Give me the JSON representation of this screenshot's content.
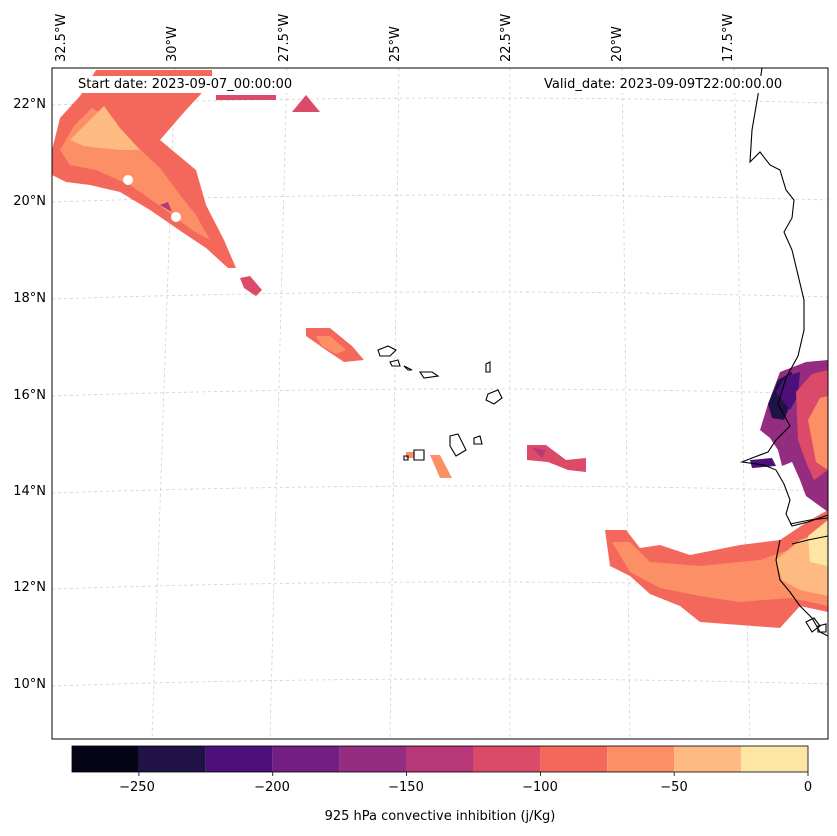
{
  "map": {
    "start_date": "Start date: 2023-09-07_00:00:00",
    "valid_date": "Valid_date: 2023-09-09T22:00:00.00",
    "lon_labels": [
      "32.5°W",
      "30°W",
      "27.5°W",
      "25°W",
      "22.5°W",
      "20°W",
      "17.5°W"
    ],
    "lat_labels": [
      "22°N",
      "20°N",
      "18°N",
      "16°N",
      "14°N",
      "12°N",
      "10°N"
    ],
    "region": "Cabo Verde islands and West African coast (Senegal, The Gambia, Guinea-Bissau)",
    "colorbar": {
      "title": "925 hPa convective inhibition (j/Kg)",
      "min": -275,
      "max": 0,
      "tick_labels": [
        "−250",
        "−200",
        "−150",
        "−100",
        "−50",
        "0"
      ],
      "tick_values": [
        -250,
        -200,
        -150,
        -100,
        -50,
        0
      ],
      "levels": [
        -275,
        -250,
        -225,
        -200,
        -175,
        -150,
        -125,
        -100,
        -75,
        -50,
        -25,
        0
      ],
      "colors": [
        "#050417",
        "#201247",
        "#4d107a",
        "#721f81",
        "#942c80",
        "#b73779",
        "#dc4a6a",
        "#f4685c",
        "#fc8f65",
        "#febb81",
        "#fde6a4"
      ]
    }
  }
}
